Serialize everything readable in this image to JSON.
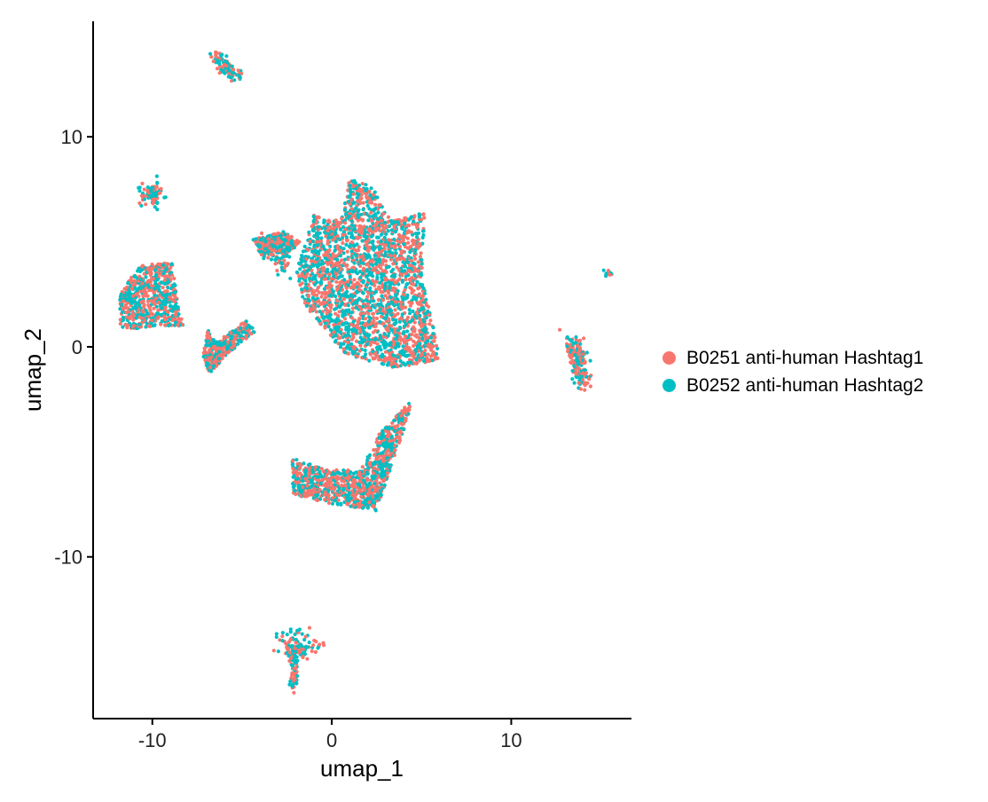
{
  "chart_data": {
    "type": "scatter",
    "xlabel": "umap_1",
    "ylabel": "umap_2",
    "xlim": [
      -13.3,
      16.7
    ],
    "ylim": [
      -17.7,
      15.5
    ],
    "x_ticks": [
      -10,
      0,
      10
    ],
    "x_tick_labels": [
      "-10",
      "0",
      "10"
    ],
    "y_ticks": [
      10,
      0,
      -10
    ],
    "y_tick_labels": [
      "10",
      "0",
      "-10"
    ],
    "grid": false,
    "legend_position": "right",
    "series": [
      {
        "name": "B0251 anti-human Hashtag1",
        "color": "#F8766D"
      },
      {
        "name": "B0252 anti-human Hashtag2",
        "color": "#00BFC4"
      }
    ],
    "clusters": [
      {
        "shape": "poly",
        "n": 2400,
        "pts": [
          [
            1,
            8
          ],
          [
            2.3,
            7.6
          ],
          [
            3.3,
            6
          ],
          [
            5.2,
            6.4
          ],
          [
            5,
            3.3
          ],
          [
            6.1,
            -0.6
          ],
          [
            3.5,
            -1
          ],
          [
            0.8,
            -0.4
          ],
          [
            -1.5,
            2
          ],
          [
            -2,
            3.5
          ],
          [
            -1,
            6.3
          ],
          [
            0.5,
            6
          ]
        ]
      },
      {
        "shape": "poly",
        "n": 1000,
        "pts": [
          [
            -2.2,
            -5.3
          ],
          [
            -0.5,
            -5.8
          ],
          [
            1.6,
            -5.9
          ],
          [
            2.6,
            -4.2
          ],
          [
            4.5,
            -2.5
          ],
          [
            4,
            -4
          ],
          [
            3,
            -6.5
          ],
          [
            2.5,
            -7.8
          ],
          [
            -0.5,
            -7.4
          ],
          [
            -2.2,
            -7
          ]
        ]
      },
      {
        "shape": "poly",
        "n": 650,
        "pts": [
          [
            -11.8,
            2.5
          ],
          [
            -10.7,
            3.9
          ],
          [
            -8.9,
            4
          ],
          [
            -8.5,
            1.5
          ],
          [
            -8.1,
            1
          ],
          [
            -9.5,
            1
          ],
          [
            -11.8,
            0.8
          ]
        ]
      },
      {
        "shape": "poly",
        "n": 350,
        "pts": [
          [
            -7.2,
            -0.5
          ],
          [
            -6.8,
            -1.3
          ],
          [
            -5.8,
            -0.3
          ],
          [
            -4.2,
            0.7
          ],
          [
            -4.7,
            1.3
          ],
          [
            -5.8,
            0.6
          ],
          [
            -6.5,
            0.2
          ],
          [
            -6.9,
            0.8
          ]
        ]
      },
      {
        "shape": "poly",
        "n": 260,
        "pts": [
          [
            -4.4,
            5.1
          ],
          [
            -2.7,
            5.5
          ],
          [
            -1.8,
            5.0
          ],
          [
            -2.5,
            4.3
          ],
          [
            -3.5,
            4.6
          ],
          [
            -4.2,
            4.8
          ]
        ]
      },
      {
        "shape": "line",
        "n": 70,
        "x0": -4,
        "y0": 4.8,
        "x1": -2.4,
        "y1": 3.8,
        "sx": 0.15,
        "sy": 0.25
      },
      {
        "shape": "line",
        "n": 90,
        "x0": -6.6,
        "y0": 13.8,
        "x1": -5.2,
        "y1": 12.8,
        "sx": 0.15,
        "sy": 0.2
      },
      {
        "shape": "blob",
        "n": 80,
        "cx": -10,
        "cy": 7.3,
        "rx": 0.35,
        "ry": 0.25
      },
      {
        "shape": "line",
        "n": 12,
        "x0": -9.9,
        "y0": 7.0,
        "x1": -9.7,
        "y1": 6.5,
        "sx": 0.08,
        "sy": 0.12
      },
      {
        "shape": "line",
        "n": 180,
        "x0": 13.4,
        "y0": 0.2,
        "x1": 14.1,
        "y1": -1.6,
        "sx": 0.22,
        "sy": 0.3
      },
      {
        "shape": "blob",
        "n": 10,
        "cx": 15.4,
        "cy": 3.5,
        "rx": 0.12,
        "ry": 0.12
      },
      {
        "shape": "blob",
        "n": 70,
        "cx": -2.0,
        "cy": -14.2,
        "rx": 0.45,
        "ry": 0.5
      },
      {
        "shape": "line",
        "n": 60,
        "x0": -2.1,
        "y0": -14.3,
        "x1": -2.1,
        "y1": -16.3,
        "sx": 0.12,
        "sy": 0.1
      },
      {
        "shape": "line",
        "n": 40,
        "x0": -2.8,
        "y0": -14.6,
        "x1": -0.2,
        "y1": -14.2,
        "sx": 0.1,
        "sy": 0.15
      }
    ]
  }
}
